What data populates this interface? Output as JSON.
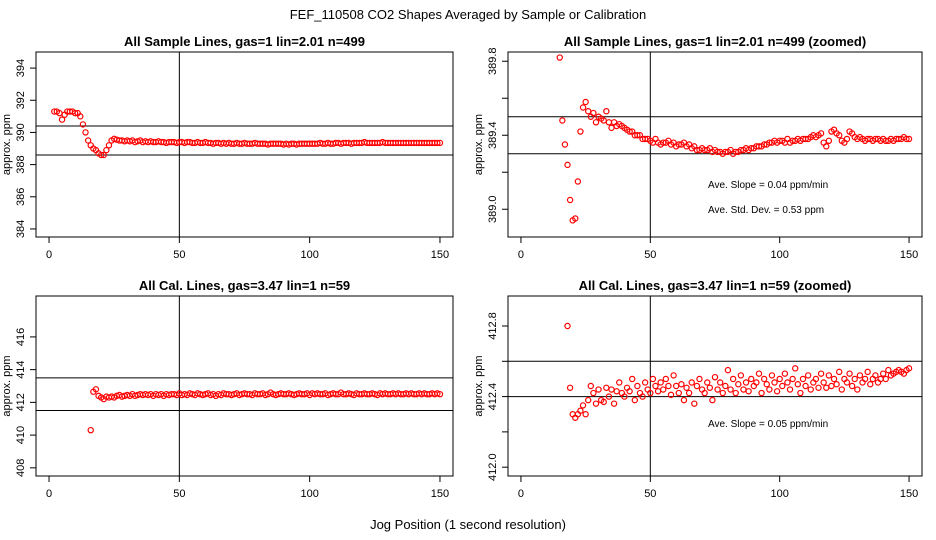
{
  "figure": {
    "title": "FEF_110508  CO2 Shapes Averaged by Sample or Calibration",
    "xlabel": "Jog Position (1 second resolution)"
  },
  "chart_data": [
    {
      "type": "scatter",
      "title": "All Sample Lines, gas=1 lin=2.01 n=499",
      "xlabel": "",
      "ylabel": "approx. ppm",
      "xlim": [
        -5,
        155
      ],
      "ylim": [
        383.5,
        395
      ],
      "xticks": [
        0,
        50,
        100,
        150
      ],
      "yticks": [
        384,
        386,
        388,
        390,
        392,
        394
      ],
      "hlines": [
        388.6,
        390.4
      ],
      "vlines": [
        50
      ],
      "annotations": [],
      "color": "#ff0000",
      "x": [
        2,
        3,
        4,
        5,
        6,
        7,
        8,
        9,
        10,
        11,
        12,
        13,
        14,
        15,
        16,
        17,
        18,
        19,
        20,
        21,
        22,
        23,
        24,
        25,
        26,
        27,
        28,
        29,
        30,
        31,
        32,
        33,
        34,
        35,
        36,
        37,
        38,
        39,
        40,
        41,
        42,
        43,
        44,
        45,
        46,
        47,
        48,
        49,
        50,
        51,
        52,
        53,
        54,
        55,
        56,
        57,
        58,
        59,
        60,
        61,
        62,
        63,
        64,
        65,
        66,
        67,
        68,
        69,
        70,
        71,
        72,
        73,
        74,
        75,
        76,
        77,
        78,
        79,
        80,
        81,
        82,
        83,
        84,
        85,
        86,
        87,
        88,
        89,
        90,
        91,
        92,
        93,
        94,
        95,
        96,
        97,
        98,
        99,
        100,
        101,
        102,
        103,
        104,
        105,
        106,
        107,
        108,
        109,
        110,
        111,
        112,
        113,
        114,
        115,
        116,
        117,
        118,
        119,
        120,
        121,
        122,
        123,
        124,
        125,
        126,
        127,
        128,
        129,
        130,
        131,
        132,
        133,
        134,
        135,
        136,
        137,
        138,
        139,
        140,
        141,
        142,
        143,
        144,
        145,
        146,
        147,
        148,
        149,
        150
      ],
      "y": [
        391.3,
        391.3,
        391.2,
        390.8,
        391.1,
        391.3,
        391.3,
        391.3,
        391.2,
        391.2,
        391.0,
        390.5,
        390.0,
        389.5,
        389.2,
        389.0,
        388.9,
        388.7,
        388.6,
        388.6,
        388.9,
        389.2,
        389.5,
        389.6,
        389.55,
        389.5,
        389.5,
        389.45,
        389.5,
        389.45,
        389.5,
        389.4,
        389.45,
        389.5,
        389.4,
        389.45,
        389.4,
        389.45,
        389.4,
        389.4,
        389.45,
        389.4,
        389.4,
        389.35,
        389.4,
        389.4,
        389.4,
        389.35,
        389.4,
        389.4,
        389.35,
        389.4,
        389.4,
        389.35,
        389.35,
        389.4,
        389.35,
        389.35,
        389.4,
        389.35,
        389.35,
        389.3,
        389.35,
        389.35,
        389.3,
        389.35,
        389.3,
        389.35,
        389.3,
        389.3,
        389.35,
        389.3,
        389.3,
        389.35,
        389.3,
        389.3,
        389.3,
        389.35,
        389.3,
        389.3,
        389.3,
        389.3,
        389.25,
        389.3,
        389.3,
        389.3,
        389.3,
        389.3,
        389.25,
        389.3,
        389.25,
        389.3,
        389.3,
        389.25,
        389.3,
        389.3,
        389.3,
        389.3,
        389.3,
        389.3,
        389.3,
        389.3,
        389.35,
        389.3,
        389.3,
        389.35,
        389.3,
        389.3,
        389.35,
        389.35,
        389.3,
        389.35,
        389.35,
        389.35,
        389.3,
        389.35,
        389.35,
        389.35,
        389.35,
        389.4,
        389.35,
        389.35,
        389.35,
        389.35,
        389.35,
        389.35,
        389.4,
        389.35,
        389.35,
        389.35,
        389.35,
        389.35,
        389.35,
        389.35,
        389.35,
        389.35,
        389.35,
        389.35,
        389.35,
        389.35,
        389.35,
        389.35,
        389.35,
        389.35,
        389.35,
        389.35,
        389.35,
        389.35,
        389.35
      ]
    },
    {
      "type": "scatter",
      "title": "All Sample Lines, gas=1 lin=2.01 n=499 (zoomed)",
      "xlabel": "",
      "ylabel": "approx. ppm",
      "xlim": [
        -5,
        155
      ],
      "ylim": [
        388.85,
        389.85
      ],
      "xticks": [
        0,
        50,
        100,
        150
      ],
      "yticks": [
        389.0,
        389.2,
        389.4,
        389.6,
        389.8
      ],
      "ytick_labels": [
        "389.0",
        "",
        "389.4",
        "",
        "389.8"
      ],
      "hlines": [
        389.3,
        389.5
      ],
      "vlines": [
        50
      ],
      "annotations": [
        "Ave. Slope =  0.04  ppm/min",
        "Ave. Std. Dev. =  0.53  ppm"
      ],
      "color": "#ff0000",
      "x": [
        15,
        16,
        17,
        18,
        19,
        20,
        21,
        22,
        23,
        24,
        25,
        26,
        27,
        28,
        29,
        30,
        31,
        32,
        33,
        34,
        35,
        36,
        37,
        38,
        39,
        40,
        41,
        42,
        43,
        44,
        45,
        46,
        47,
        48,
        49,
        50,
        51,
        52,
        53,
        54,
        55,
        56,
        57,
        58,
        59,
        60,
        61,
        62,
        63,
        64,
        65,
        66,
        67,
        68,
        69,
        70,
        71,
        72,
        73,
        74,
        75,
        76,
        77,
        78,
        79,
        80,
        81,
        82,
        83,
        84,
        85,
        86,
        87,
        88,
        89,
        90,
        91,
        92,
        93,
        94,
        95,
        96,
        97,
        98,
        99,
        100,
        101,
        102,
        103,
        104,
        105,
        106,
        107,
        108,
        109,
        110,
        111,
        112,
        113,
        114,
        115,
        116,
        117,
        118,
        119,
        120,
        121,
        122,
        123,
        124,
        125,
        126,
        127,
        128,
        129,
        130,
        131,
        132,
        133,
        134,
        135,
        136,
        137,
        138,
        139,
        140,
        141,
        142,
        143,
        144,
        145,
        146,
        147,
        148,
        149,
        150
      ],
      "y": [
        389.82,
        389.48,
        389.35,
        389.24,
        389.05,
        388.94,
        388.95,
        389.15,
        389.42,
        389.55,
        389.58,
        389.53,
        389.5,
        389.52,
        389.47,
        389.5,
        389.49,
        389.48,
        389.53,
        389.47,
        389.44,
        389.47,
        389.45,
        389.46,
        389.45,
        389.44,
        389.43,
        389.42,
        389.42,
        389.4,
        389.4,
        389.4,
        389.38,
        389.38,
        389.38,
        389.37,
        389.36,
        389.38,
        389.36,
        389.35,
        389.36,
        389.36,
        389.37,
        389.35,
        389.36,
        389.34,
        389.35,
        389.35,
        389.36,
        389.34,
        389.35,
        389.33,
        389.34,
        389.32,
        389.32,
        389.33,
        389.32,
        389.32,
        389.33,
        389.31,
        389.32,
        389.31,
        389.31,
        389.3,
        389.31,
        389.31,
        389.32,
        389.3,
        389.31,
        389.31,
        389.32,
        389.32,
        389.33,
        389.32,
        389.33,
        389.33,
        389.34,
        389.34,
        389.34,
        389.35,
        389.35,
        389.36,
        389.36,
        389.37,
        389.36,
        389.37,
        389.37,
        389.36,
        389.38,
        389.36,
        389.37,
        389.37,
        389.38,
        389.37,
        389.38,
        389.38,
        389.38,
        389.39,
        389.4,
        389.39,
        389.4,
        389.41,
        389.36,
        389.34,
        389.37,
        389.42,
        389.43,
        389.41,
        389.4,
        389.37,
        389.36,
        389.38,
        389.42,
        389.41,
        389.39,
        389.38,
        389.39,
        389.38,
        389.37,
        389.38,
        389.38,
        389.37,
        389.38,
        389.38,
        389.37,
        389.38,
        389.37,
        389.37,
        389.38,
        389.37,
        389.38,
        389.38,
        389.38,
        389.39,
        389.38,
        389.38
      ]
    },
    {
      "type": "scatter",
      "title": "All Cal. Lines, gas=3.47 lin=1 n=59",
      "xlabel": "",
      "ylabel": "approx. ppm",
      "xlim": [
        -5,
        155
      ],
      "ylim": [
        407.5,
        418.5
      ],
      "xticks": [
        0,
        50,
        100,
        150
      ],
      "yticks": [
        408,
        410,
        412,
        414,
        416
      ],
      "hlines": [
        411.5,
        413.5
      ],
      "vlines": [
        50
      ],
      "annotations": [],
      "color": "#ff0000",
      "x": [
        16,
        17,
        18,
        19,
        20,
        21,
        22,
        23,
        24,
        25,
        26,
        27,
        28,
        29,
        30,
        31,
        32,
        33,
        34,
        35,
        36,
        37,
        38,
        39,
        40,
        41,
        42,
        43,
        44,
        45,
        46,
        47,
        48,
        49,
        50,
        51,
        52,
        53,
        54,
        55,
        56,
        57,
        58,
        59,
        60,
        61,
        62,
        63,
        64,
        65,
        66,
        67,
        68,
        69,
        70,
        71,
        72,
        73,
        74,
        75,
        76,
        77,
        78,
        79,
        80,
        81,
        82,
        83,
        84,
        85,
        86,
        87,
        88,
        89,
        90,
        91,
        92,
        93,
        94,
        95,
        96,
        97,
        98,
        99,
        100,
        101,
        102,
        103,
        104,
        105,
        106,
        107,
        108,
        109,
        110,
        111,
        112,
        113,
        114,
        115,
        116,
        117,
        118,
        119,
        120,
        121,
        122,
        123,
        124,
        125,
        126,
        127,
        128,
        129,
        130,
        131,
        132,
        133,
        134,
        135,
        136,
        137,
        138,
        139,
        140,
        141,
        142,
        143,
        144,
        145,
        146,
        147,
        148,
        149,
        150
      ],
      "y": [
        410.3,
        412.65,
        412.8,
        412.4,
        412.3,
        412.2,
        412.35,
        412.3,
        412.35,
        412.3,
        412.4,
        412.45,
        412.35,
        412.4,
        412.45,
        412.4,
        412.5,
        412.4,
        412.45,
        412.5,
        412.45,
        412.5,
        412.45,
        412.5,
        412.4,
        412.5,
        412.45,
        412.5,
        412.4,
        412.5,
        412.45,
        412.5,
        412.5,
        412.45,
        412.55,
        412.45,
        412.5,
        412.45,
        412.55,
        412.5,
        412.45,
        412.55,
        412.5,
        412.45,
        412.5,
        412.55,
        412.45,
        412.5,
        412.4,
        412.5,
        412.45,
        412.55,
        412.5,
        412.5,
        412.45,
        412.5,
        412.55,
        412.45,
        412.5,
        412.55,
        412.5,
        412.5,
        412.45,
        412.55,
        412.5,
        412.5,
        412.55,
        412.45,
        412.5,
        412.6,
        412.5,
        412.45,
        412.5,
        412.55,
        412.5,
        412.5,
        412.55,
        412.5,
        412.45,
        412.5,
        412.55,
        412.5,
        412.5,
        412.55,
        412.45,
        412.55,
        412.5,
        412.55,
        412.5,
        412.5,
        412.55,
        412.45,
        412.5,
        412.55,
        412.5,
        412.5,
        412.6,
        412.5,
        412.5,
        412.55,
        412.5,
        412.45,
        412.55,
        412.5,
        412.5,
        412.55,
        412.5,
        412.5,
        412.55,
        412.5,
        412.45,
        412.55,
        412.5,
        412.55,
        412.5,
        412.5,
        412.55,
        412.5,
        412.55,
        412.5,
        412.5,
        412.55,
        412.5,
        412.55,
        412.5,
        412.5,
        412.55,
        412.5,
        412.55,
        412.5,
        412.5,
        412.55,
        412.5,
        412.55,
        412.5
      ]
    },
    {
      "type": "scatter",
      "title": "All Cal. Lines, gas=3.47 lin=1 n=59 (zoomed)",
      "xlabel": "",
      "ylabel": "approx. ppm",
      "xlim": [
        -5,
        155
      ],
      "ylim": [
        411.95,
        412.97
      ],
      "xticks": [
        0,
        50,
        100,
        150
      ],
      "yticks": [
        412.0,
        412.2,
        412.4,
        412.6,
        412.8
      ],
      "ytick_labels": [
        "412.0",
        "",
        "412.4",
        "",
        "412.8"
      ],
      "hlines": [
        412.4,
        412.6
      ],
      "vlines": [
        50
      ],
      "annotations": [
        "Ave. Slope =  0.05  ppm/min"
      ],
      "color": "#ff0000",
      "x": [
        18,
        19,
        20,
        21,
        22,
        23,
        24,
        25,
        26,
        27,
        28,
        29,
        30,
        31,
        32,
        33,
        34,
        35,
        36,
        37,
        38,
        39,
        40,
        41,
        42,
        43,
        44,
        45,
        46,
        47,
        48,
        49,
        50,
        51,
        52,
        53,
        54,
        55,
        56,
        57,
        58,
        59,
        60,
        61,
        62,
        63,
        64,
        65,
        66,
        67,
        68,
        69,
        70,
        71,
        72,
        73,
        74,
        75,
        76,
        77,
        78,
        79,
        80,
        81,
        82,
        83,
        84,
        85,
        86,
        87,
        88,
        89,
        90,
        91,
        92,
        93,
        94,
        95,
        96,
        97,
        98,
        99,
        100,
        101,
        102,
        103,
        104,
        105,
        106,
        107,
        108,
        109,
        110,
        111,
        112,
        113,
        114,
        115,
        116,
        117,
        118,
        119,
        120,
        121,
        122,
        123,
        124,
        125,
        126,
        127,
        128,
        129,
        130,
        131,
        132,
        133,
        134,
        135,
        136,
        137,
        138,
        139,
        140,
        141,
        142,
        143,
        144,
        145,
        146,
        147,
        148,
        149,
        150
      ],
      "y": [
        412.8,
        412.45,
        412.3,
        412.28,
        412.3,
        412.32,
        412.35,
        412.3,
        412.38,
        412.46,
        412.42,
        412.36,
        412.44,
        412.38,
        412.37,
        412.45,
        412.4,
        412.44,
        412.36,
        412.43,
        412.48,
        412.42,
        412.4,
        412.45,
        412.43,
        412.5,
        412.38,
        412.46,
        412.42,
        412.4,
        412.48,
        412.44,
        412.42,
        412.5,
        412.46,
        412.43,
        412.48,
        412.44,
        412.5,
        412.46,
        412.41,
        412.52,
        412.46,
        412.42,
        412.47,
        412.38,
        412.45,
        412.42,
        412.48,
        412.36,
        412.46,
        412.5,
        412.44,
        412.42,
        412.48,
        412.45,
        412.38,
        412.51,
        412.44,
        412.48,
        412.42,
        412.46,
        412.55,
        412.44,
        412.5,
        412.42,
        412.47,
        412.52,
        412.44,
        412.48,
        412.43,
        412.5,
        412.46,
        412.48,
        412.53,
        412.42,
        412.5,
        412.47,
        412.44,
        412.52,
        412.48,
        412.43,
        412.5,
        412.46,
        412.53,
        412.48,
        412.44,
        412.5,
        412.56,
        412.47,
        412.42,
        412.5,
        412.46,
        412.52,
        412.44,
        412.48,
        412.5,
        412.45,
        412.53,
        412.48,
        412.45,
        412.52,
        412.46,
        412.5,
        412.47,
        412.54,
        412.44,
        412.5,
        412.48,
        412.53,
        412.46,
        412.5,
        412.44,
        412.52,
        412.48,
        412.5,
        412.54,
        412.47,
        412.5,
        412.52,
        412.48,
        412.5,
        412.53,
        412.5,
        412.55,
        412.52,
        412.53,
        412.54,
        412.55,
        412.54,
        412.53,
        412.55,
        412.56
      ]
    }
  ]
}
